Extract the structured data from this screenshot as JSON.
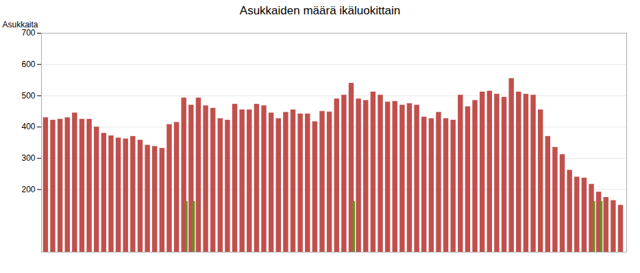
{
  "chart_data": {
    "type": "bar",
    "title": "Asukkaiden määrä ikäluokittain",
    "ylabel": "Asukkaita",
    "categories": [
      null,
      null,
      null,
      null,
      null,
      null,
      null,
      null,
      null,
      null,
      null,
      null,
      null,
      null,
      null,
      null,
      null,
      null,
      null,
      null,
      null,
      null,
      null,
      null,
      null,
      null,
      null,
      null,
      null,
      null,
      null,
      null,
      null,
      null,
      null,
      null,
      null,
      null,
      null,
      null,
      null,
      null,
      null,
      null,
      null,
      null,
      null,
      null,
      null,
      null,
      null,
      null,
      null,
      null,
      null,
      null,
      null,
      null,
      null,
      null,
      null,
      null,
      null,
      null,
      null,
      null,
      null,
      null,
      null,
      null,
      null,
      null,
      null,
      null,
      null,
      null,
      null,
      null,
      null,
      null
    ],
    "series": [
      {
        "color": "#C0504D",
        "values": [
          430,
          422,
          425,
          430,
          445,
          425,
          425,
          400,
          380,
          372,
          365,
          362,
          370,
          358,
          342,
          338,
          332,
          408,
          415,
          493,
          470,
          493,
          468,
          460,
          427,
          422,
          473,
          455,
          455,
          473,
          468,
          445,
          427,
          447,
          455,
          442,
          442,
          417,
          450,
          448,
          490,
          502,
          540,
          490,
          485,
          512,
          502,
          480,
          482,
          470,
          475,
          470,
          432,
          427,
          447,
          427,
          422,
          502,
          465,
          485,
          512,
          515,
          505,
          495,
          555,
          512,
          505,
          502,
          455,
          370,
          335,
          312,
          262,
          240,
          237,
          217,
          192,
          175,
          165,
          150
        ]
      },
      {
        "color": "#6B8E23",
        "values": [
          0,
          0,
          0,
          0,
          0,
          0,
          0,
          0,
          0,
          0,
          0,
          0,
          0,
          0,
          0,
          0,
          0,
          0,
          0,
          162,
          162,
          0,
          0,
          0,
          0,
          0,
          0,
          0,
          0,
          0,
          0,
          0,
          0,
          0,
          0,
          0,
          0,
          0,
          0,
          0,
          0,
          0,
          162,
          0,
          0,
          0,
          0,
          0,
          0,
          0,
          0,
          0,
          0,
          0,
          0,
          0,
          0,
          0,
          0,
          0,
          0,
          0,
          0,
          0,
          0,
          0,
          0,
          0,
          0,
          0,
          0,
          0,
          0,
          0,
          0,
          162,
          162,
          0,
          0,
          0
        ]
      }
    ],
    "ylim": [
      0,
      700
    ],
    "yticks": [
      200,
      300,
      400,
      500,
      600,
      700
    ],
    "grid": true,
    "tick_labels": "y"
  }
}
